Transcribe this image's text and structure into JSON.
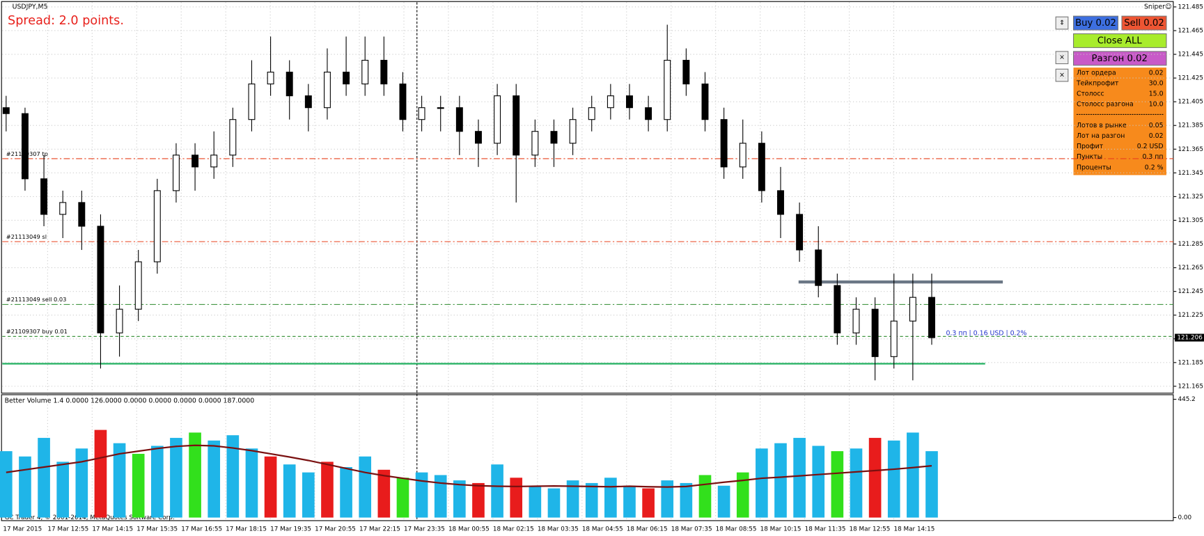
{
  "chart": {
    "type": "candlestick",
    "symbol": "USDJPY,M5",
    "expert": "Sniper☺",
    "spread": "Spread: 2.0 points.",
    "ylim": [
      121.165,
      121.485
    ],
    "yticks": [
      121.485,
      121.465,
      121.445,
      121.425,
      121.405,
      121.385,
      121.365,
      121.345,
      121.325,
      121.305,
      121.285,
      121.265,
      121.245,
      121.225,
      121.205,
      121.185,
      121.165
    ],
    "grid": true,
    "time_labels": [
      "17 Mar 2015",
      "17 Mar 12:55",
      "17 Mar 14:15",
      "17 Mar 15:35",
      "17 Mar 16:55",
      "17 Mar 18:15",
      "17 Mar 19:35",
      "17 Mar 20:55",
      "17 Mar 22:15",
      "17 Mar 23:35",
      "18 Mar 00:55",
      "18 Mar 02:15",
      "18 Mar 03:35",
      "18 Mar 04:55",
      "18 Mar 06:15",
      "18 Mar 07:35",
      "18 Mar 08:55",
      "18 Mar 10:15",
      "18 Mar 11:35",
      "18 Mar 12:55",
      "18 Mar 14:15"
    ],
    "candles": [
      [
        121.4,
        121.41,
        121.38,
        121.395
      ],
      [
        121.395,
        121.4,
        121.33,
        121.34
      ],
      [
        121.34,
        121.36,
        121.3,
        121.31
      ],
      [
        121.31,
        121.33,
        121.29,
        121.32
      ],
      [
        121.32,
        121.33,
        121.28,
        121.3
      ],
      [
        121.3,
        121.31,
        121.18,
        121.21
      ],
      [
        121.21,
        121.25,
        121.19,
        121.23
      ],
      [
        121.23,
        121.28,
        121.22,
        121.27
      ],
      [
        121.27,
        121.34,
        121.26,
        121.33
      ],
      [
        121.33,
        121.37,
        121.32,
        121.36
      ],
      [
        121.36,
        121.37,
        121.33,
        121.35
      ],
      [
        121.35,
        121.38,
        121.34,
        121.36
      ],
      [
        121.36,
        121.4,
        121.35,
        121.39
      ],
      [
        121.39,
        121.44,
        121.38,
        121.42
      ],
      [
        121.42,
        121.46,
        121.41,
        121.43
      ],
      [
        121.43,
        121.44,
        121.39,
        121.41
      ],
      [
        121.41,
        121.42,
        121.38,
        121.4
      ],
      [
        121.4,
        121.45,
        121.39,
        121.43
      ],
      [
        121.43,
        121.46,
        121.41,
        121.42
      ],
      [
        121.42,
        121.46,
        121.41,
        121.44
      ],
      [
        121.44,
        121.46,
        121.41,
        121.42
      ],
      [
        121.42,
        121.43,
        121.38,
        121.39
      ],
      [
        121.39,
        121.41,
        121.38,
        121.4
      ],
      [
        121.4,
        121.41,
        121.38,
        121.4
      ],
      [
        121.4,
        121.41,
        121.36,
        121.38
      ],
      [
        121.38,
        121.39,
        121.35,
        121.37
      ],
      [
        121.37,
        121.42,
        121.36,
        121.41
      ],
      [
        121.41,
        121.42,
        121.32,
        121.36
      ],
      [
        121.36,
        121.39,
        121.35,
        121.38
      ],
      [
        121.38,
        121.39,
        121.35,
        121.37
      ],
      [
        121.37,
        121.4,
        121.36,
        121.39
      ],
      [
        121.39,
        121.41,
        121.38,
        121.4
      ],
      [
        121.4,
        121.42,
        121.39,
        121.41
      ],
      [
        121.41,
        121.42,
        121.39,
        121.4
      ],
      [
        121.4,
        121.41,
        121.38,
        121.39
      ],
      [
        121.39,
        121.47,
        121.38,
        121.44
      ],
      [
        121.44,
        121.45,
        121.41,
        121.42
      ],
      [
        121.42,
        121.43,
        121.38,
        121.39
      ],
      [
        121.39,
        121.4,
        121.34,
        121.35
      ],
      [
        121.35,
        121.39,
        121.34,
        121.37
      ],
      [
        121.37,
        121.38,
        121.32,
        121.33
      ],
      [
        121.33,
        121.35,
        121.29,
        121.31
      ],
      [
        121.31,
        121.32,
        121.27,
        121.28
      ],
      [
        121.28,
        121.3,
        121.24,
        121.25
      ],
      [
        121.25,
        121.26,
        121.2,
        121.21
      ],
      [
        121.21,
        121.24,
        121.2,
        121.23
      ],
      [
        121.23,
        121.24,
        121.17,
        121.19
      ],
      [
        121.19,
        121.26,
        121.18,
        121.22
      ],
      [
        121.22,
        121.26,
        121.17,
        121.24
      ],
      [
        121.24,
        121.26,
        121.2,
        121.206
      ]
    ],
    "current_price": 121.206,
    "order_lines": [
      {
        "label": "#21109307 tp",
        "price": 121.357,
        "color": "#e8421c",
        "dash": "8 3 2 3"
      },
      {
        "label": "#21113049 sl",
        "price": 121.287,
        "color": "#e8421c",
        "dash": "8 3 2 3"
      },
      {
        "label": "#21113049 sell 0.03",
        "price": 121.234,
        "color": "#2d8a2d",
        "dash": "8 3 2 3"
      },
      {
        "label": "#21109307 buy 0.01",
        "price": 121.207,
        "color": "#2d8a2d",
        "dash": "4 3"
      }
    ],
    "resistance": 121.253,
    "support": 121.184,
    "profit_note": "0.3 пп | 0.16 USD | 0.2%",
    "volume": {
      "title": "Better Volume 1.4 0.0000 126.0000 0.0000 0.0000 0.0000 0.0000 187.0000",
      "ylim": [
        0,
        445.2
      ],
      "yticks": [
        {
          "value": 0,
          "label": "0.00"
        },
        445.2
      ],
      "values": [
        250,
        230,
        300,
        210,
        260,
        330,
        280,
        240,
        270,
        300,
        320,
        290,
        310,
        260,
        230,
        200,
        170,
        210,
        190,
        230,
        180,
        150,
        170,
        160,
        140,
        130,
        200,
        150,
        120,
        110,
        140,
        130,
        150,
        120,
        110,
        140,
        130,
        160,
        120,
        170,
        260,
        280,
        300,
        270,
        250,
        260,
        300,
        290,
        320,
        250
      ],
      "colors": [
        "#1fb5e8",
        "#1fb5e8",
        "#1fb5e8",
        "#1fb5e8",
        "#1fb5e8",
        "#e81c1c",
        "#1fb5e8",
        "#32e01c",
        "#1fb5e8",
        "#1fb5e8",
        "#32e01c",
        "#1fb5e8",
        "#1fb5e8",
        "#1fb5e8",
        "#e81c1c",
        "#1fb5e8",
        "#1fb5e8",
        "#e81c1c",
        "#1fb5e8",
        "#1fb5e8",
        "#e81c1c",
        "#32e01c",
        "#1fb5e8",
        "#1fb5e8",
        "#1fb5e8",
        "#e81c1c",
        "#1fb5e8",
        "#e81c1c",
        "#1fb5e8",
        "#1fb5e8",
        "#1fb5e8",
        "#1fb5e8",
        "#1fb5e8",
        "#1fb5e8",
        "#e81c1c",
        "#1fb5e8",
        "#1fb5e8",
        "#32e01c",
        "#1fb5e8",
        "#32e01c",
        "#1fb5e8",
        "#1fb5e8",
        "#1fb5e8",
        "#1fb5e8",
        "#32e01c",
        "#1fb5e8",
        "#e81c1c",
        "#1fb5e8",
        "#1fb5e8",
        "#1fb5e8"
      ],
      "ma": [
        170,
        180,
        190,
        200,
        210,
        225,
        240,
        250,
        260,
        268,
        272,
        270,
        262,
        252,
        240,
        228,
        215,
        200,
        185,
        170,
        158,
        148,
        138,
        130,
        124,
        120,
        118,
        117,
        118,
        119,
        118,
        117,
        116,
        118,
        116,
        115,
        117,
        125,
        133,
        140,
        148,
        152,
        157,
        162,
        167,
        172,
        177,
        182,
        188,
        195
      ],
      "ma_color": "#7a1010"
    },
    "copyright": "GC Trader 4, © 2001-2014, MetaQuotes Software Corp.",
    "buttons": {
      "buy": "Buy 0.02",
      "sell": "Sell 0.02",
      "close": "Close ALL",
      "boost": "Разгон 0.02"
    },
    "info": [
      [
        "Лот ордера",
        "0.02"
      ],
      [
        "Тейкпрофит",
        "30.0"
      ],
      [
        "Столосс",
        "15.0"
      ],
      [
        "Столосс разгона",
        "10.0"
      ],
      [
        "Лотов в рынке",
        "0.05"
      ],
      [
        "Лот на разгон",
        "0.02"
      ],
      [
        "Профит",
        "0.2 USD"
      ],
      [
        "Пункты",
        "0.3 пп"
      ],
      [
        "Проценты",
        "0.2 %"
      ]
    ]
  }
}
